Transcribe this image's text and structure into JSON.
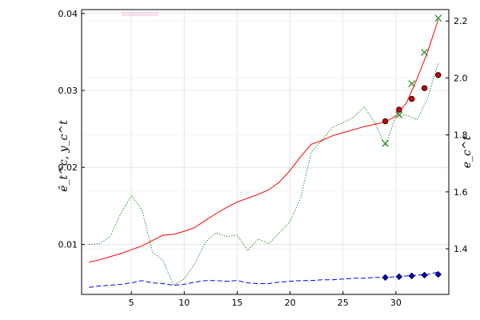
{
  "chart_data": {
    "type": "line",
    "title": "",
    "xlabel": "",
    "ylabel_left": "ē_t^c, y_c^t",
    "ylabel_right": "e_c^t",
    "xlim": [
      0.3,
      35
    ],
    "ylim_left": [
      0.0035,
      0.0405
    ],
    "ylim_right": [
      1.24,
      2.24
    ],
    "grid": true,
    "legend": "top-left",
    "x_ticks": [
      5,
      10,
      15,
      20,
      25,
      30
    ],
    "y_left_ticks": [
      0.01,
      0.02,
      0.03,
      0.04
    ],
    "y_right_ticks": [
      1.4,
      1.6,
      1.8,
      2.0,
      2.2
    ],
    "series": [
      {
        "style": "solid",
        "axis": "left",
        "color": "#ff0000",
        "x": [
          1,
          2,
          3,
          4,
          5,
          6,
          7,
          8,
          9,
          10,
          11,
          12,
          13,
          14,
          15,
          16,
          17,
          18,
          19,
          20,
          21,
          22,
          23,
          24,
          25,
          26,
          27,
          28,
          29,
          30,
          31,
          32,
          33,
          34
        ],
        "values": [
          0.0077,
          0.008,
          0.0084,
          0.0088,
          0.0093,
          0.0098,
          0.0105,
          0.0112,
          0.0113,
          0.0117,
          0.0122,
          0.0131,
          0.014,
          0.0148,
          0.0155,
          0.016,
          0.0165,
          0.0171,
          0.0181,
          0.0196,
          0.0214,
          0.023,
          0.0235,
          0.0241,
          0.0245,
          0.0249,
          0.0253,
          0.0256,
          0.0259,
          0.0267,
          0.0284,
          0.0315,
          0.035,
          0.0392
        ]
      },
      {
        "style": "dotted",
        "axis": "left",
        "color": "#008000",
        "x": [
          1,
          2,
          3,
          4,
          5,
          6,
          7,
          8,
          9,
          10,
          11,
          12,
          13,
          14,
          15,
          16,
          17,
          18,
          19,
          20,
          21,
          22,
          23,
          24,
          25,
          26,
          27,
          28,
          29,
          30,
          31,
          32,
          33,
          34
        ],
        "values": [
          0.01,
          0.0101,
          0.011,
          0.014,
          0.0163,
          0.0145,
          0.009,
          0.0079,
          0.0047,
          0.0055,
          0.0075,
          0.0103,
          0.0115,
          0.011,
          0.0112,
          0.0092,
          0.0107,
          0.0101,
          0.0115,
          0.013,
          0.016,
          0.022,
          0.0235,
          0.0252,
          0.0258,
          0.0265,
          0.0279,
          0.0258,
          0.0228,
          0.0267,
          0.0268,
          0.0262,
          0.029,
          0.0336
        ]
      },
      {
        "style": "dashed",
        "axis": "left",
        "color": "#0000ff",
        "x": [
          1,
          2,
          3,
          4,
          5,
          6,
          7,
          8,
          9,
          10,
          11,
          12,
          13,
          14,
          15,
          16,
          17,
          18,
          19,
          20,
          21,
          22,
          23,
          24,
          25,
          26,
          27,
          28,
          29,
          30,
          31,
          32,
          33,
          34
        ],
        "values": [
          0.0044,
          0.0046,
          0.0047,
          0.0048,
          0.005,
          0.0053,
          0.005,
          0.0049,
          0.0047,
          0.0048,
          0.0051,
          0.0053,
          0.0053,
          0.0052,
          0.0053,
          0.005,
          0.0049,
          0.0049,
          0.0051,
          0.0052,
          0.0053,
          0.0053,
          0.0054,
          0.0054,
          0.0055,
          0.0056,
          0.0056,
          0.0057,
          0.0057,
          0.0058,
          0.0059,
          0.006,
          0.0061,
          0.0064
        ]
      },
      {
        "style": "circle-marker",
        "axis": "left",
        "color": "#cc0000",
        "x": [
          29,
          30.3,
          31.5,
          32.7,
          34
        ],
        "values": [
          0.026,
          0.0275,
          0.0289,
          0.0303,
          0.032
        ]
      },
      {
        "style": "x-marker",
        "axis": "right",
        "color": "#228b22",
        "x": [
          29,
          30.3,
          31.5,
          32.7,
          34
        ],
        "values": [
          1.77,
          1.87,
          1.98,
          2.09,
          2.21
        ]
      },
      {
        "style": "diamond-marker",
        "axis": "left",
        "color": "#0000cc",
        "x": [
          29,
          30.3,
          31.5,
          32.7,
          34
        ],
        "values": [
          0.0057,
          0.0058,
          0.0059,
          0.006,
          0.0061
        ]
      }
    ]
  }
}
